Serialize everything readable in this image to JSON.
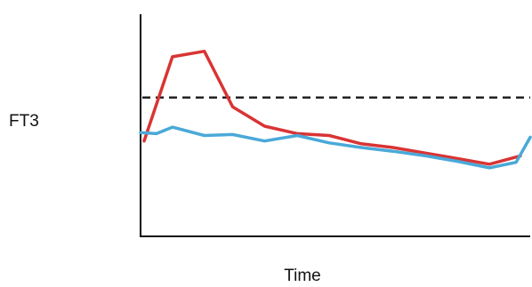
{
  "chart_data": {
    "type": "line",
    "title": "",
    "xlabel": "Time",
    "ylabel": "FT3",
    "grid": false,
    "legend": "none",
    "xlim": [
      0,
      44
    ],
    "ylim": [
      0,
      24
    ],
    "x": [
      0,
      1,
      2,
      3,
      4,
      5,
      6,
      7,
      8,
      9,
      10,
      11,
      12,
      13,
      14,
      15,
      16,
      17,
      18,
      19,
      20,
      21,
      22,
      23,
      24,
      25,
      26,
      27,
      28,
      29,
      30,
      31,
      32,
      33,
      34,
      35,
      36,
      37,
      38,
      39,
      40,
      41,
      42,
      43,
      44
    ],
    "series": [
      {
        "color": "#d93434",
        "x": [
          0.4,
          3.6,
          7.2,
          10.4,
          14.0,
          17.7,
          21.3,
          24.9,
          28.5,
          32.2,
          35.8,
          39.4,
          42.9
        ],
        "values": [
          10.3,
          19.4,
          20.0,
          14.0,
          11.9,
          11.1,
          10.9,
          10.0,
          9.6,
          9.0,
          8.4,
          7.8,
          8.7
        ]
      },
      {
        "color": "#4aa9d8",
        "x": [
          0.0,
          1.8,
          3.6,
          7.2,
          10.4,
          14.0,
          17.7,
          21.3,
          24.9,
          28.5,
          32.2,
          35.8,
          39.4,
          42.4,
          44.0
        ],
        "values": [
          11.2,
          11.1,
          11.8,
          10.9,
          11.0,
          10.3,
          10.9,
          10.1,
          9.6,
          9.2,
          8.7,
          8.1,
          7.4,
          8.0,
          10.7
        ]
      }
    ],
    "reference_lines": [
      {
        "y": 15.0,
        "style": "dashed",
        "color": "#222222"
      }
    ]
  }
}
